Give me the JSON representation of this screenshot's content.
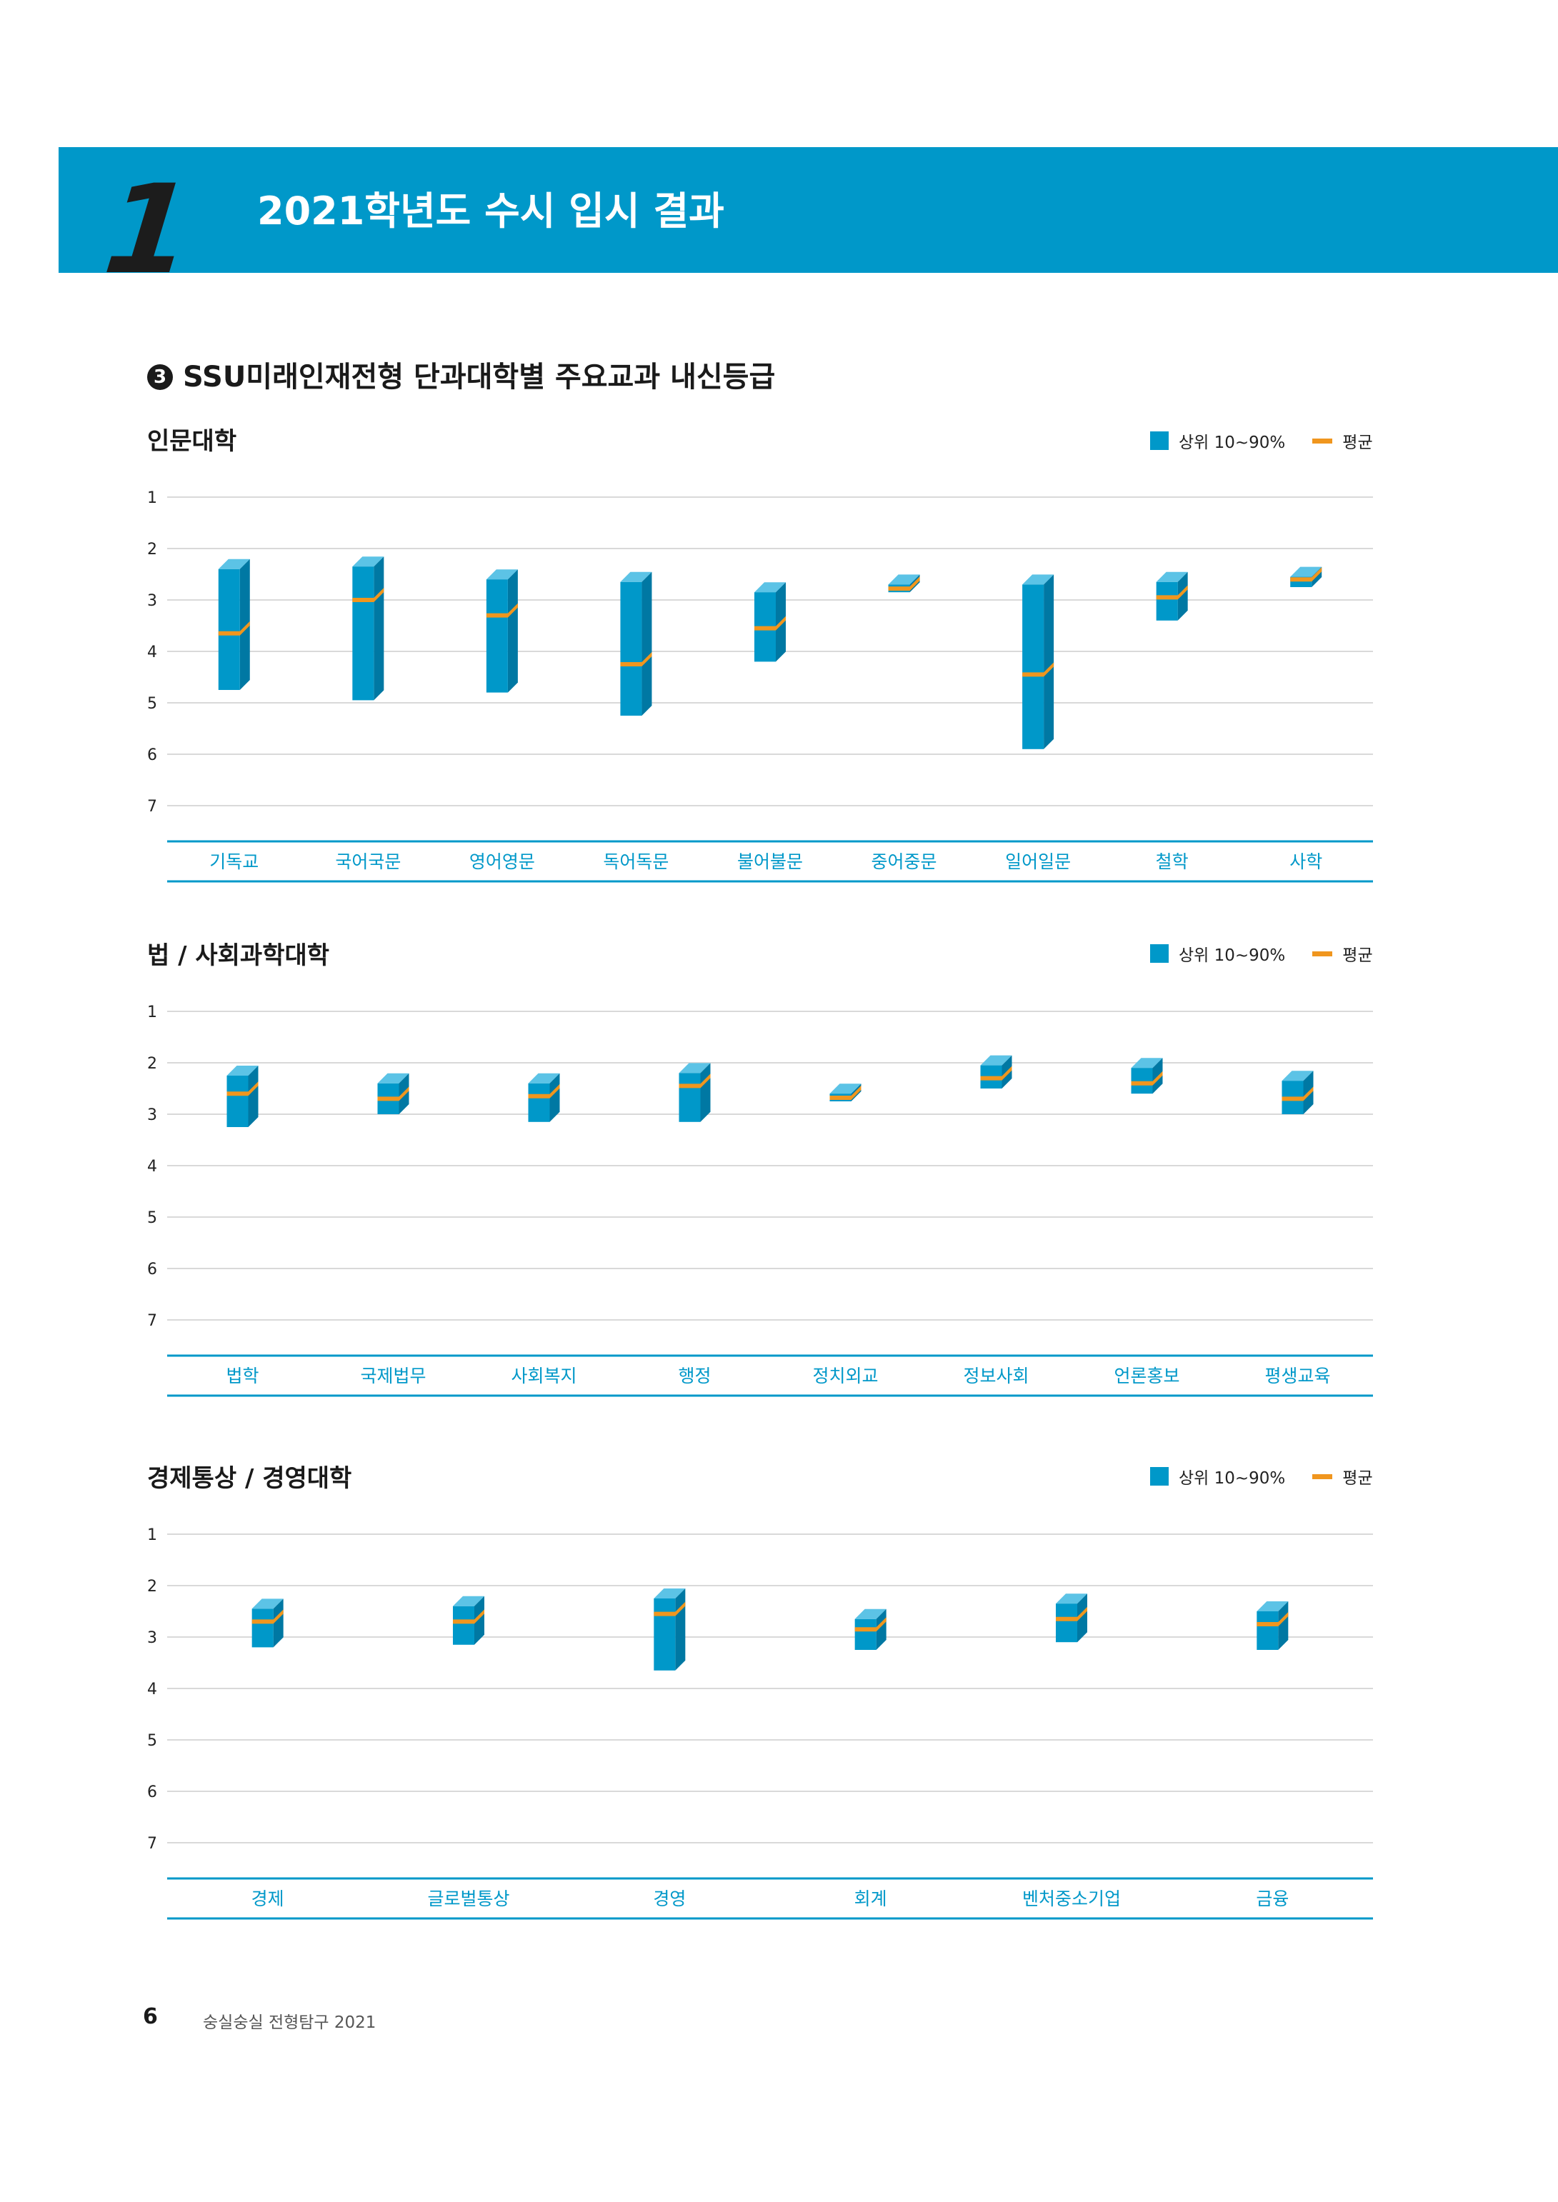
{
  "banner": {
    "number": "1",
    "title": "2021학년도 수시 입시 결과"
  },
  "section": {
    "bullet": "3",
    "title": "SSU미래인재전형 단과대학별 주요교과 내신등급"
  },
  "legend": {
    "range_label": "상위 10~90%",
    "avg_label": "평균"
  },
  "colors": {
    "accent": "#0098c9",
    "average": "#f0961e",
    "label": "#0098c9",
    "grid": "#d9d9d9"
  },
  "footer": {
    "page": "6",
    "text": "숭실숭실 전형탐구 2021"
  },
  "chart_data": [
    {
      "type": "bar",
      "title": "인문대학",
      "y_ticks": [
        "1",
        "2",
        "3",
        "4",
        "5",
        "6",
        "7"
      ],
      "ylim": [
        1,
        7
      ],
      "y_inverted": true,
      "categories": [
        "기독교",
        "국어국문",
        "영어영문",
        "독어독문",
        "불어불문",
        "중어중문",
        "일어일문",
        "철학",
        "사학"
      ],
      "series": [
        {
          "name": "상위 10~90%",
          "low": [
            2.4,
            2.35,
            2.6,
            2.65,
            2.85,
            2.7,
            2.7,
            2.65,
            2.55
          ],
          "high": [
            4.75,
            4.95,
            4.8,
            5.25,
            4.2,
            2.85,
            5.9,
            3.4,
            2.75
          ]
        },
        {
          "name": "평균",
          "values": [
            3.65,
            3.0,
            3.3,
            4.25,
            3.55,
            2.78,
            4.45,
            2.95,
            2.6
          ]
        }
      ]
    },
    {
      "type": "bar",
      "title": "법 / 사회과학대학",
      "y_ticks": [
        "1",
        "2",
        "3",
        "4",
        "5",
        "6",
        "7"
      ],
      "ylim": [
        1,
        7
      ],
      "y_inverted": true,
      "categories": [
        "법학",
        "국제법무",
        "사회복지",
        "행정",
        "정치외교",
        "정보사회",
        "언론홍보",
        "평생교육"
      ],
      "series": [
        {
          "name": "상위 10~90%",
          "low": [
            2.25,
            2.4,
            2.4,
            2.2,
            2.6,
            2.05,
            2.1,
            2.35
          ],
          "high": [
            3.25,
            3.0,
            3.15,
            3.15,
            2.75,
            2.5,
            2.6,
            3.0
          ]
        },
        {
          "name": "평균",
          "values": [
            2.6,
            2.7,
            2.65,
            2.45,
            2.68,
            2.3,
            2.4,
            2.7
          ]
        }
      ]
    },
    {
      "type": "bar",
      "title": "경제통상 / 경영대학",
      "y_ticks": [
        "1",
        "2",
        "3",
        "4",
        "5",
        "6",
        "7"
      ],
      "ylim": [
        1,
        7
      ],
      "y_inverted": true,
      "categories": [
        "경제",
        "글로벌통상",
        "경영",
        "회계",
        "벤처중소기업",
        "금융"
      ],
      "series": [
        {
          "name": "상위 10~90%",
          "low": [
            2.45,
            2.4,
            2.25,
            2.65,
            2.35,
            2.5
          ],
          "high": [
            3.2,
            3.15,
            3.65,
            3.25,
            3.1,
            3.25
          ]
        },
        {
          "name": "평균",
          "values": [
            2.7,
            2.7,
            2.55,
            2.85,
            2.65,
            2.75
          ]
        }
      ]
    }
  ]
}
